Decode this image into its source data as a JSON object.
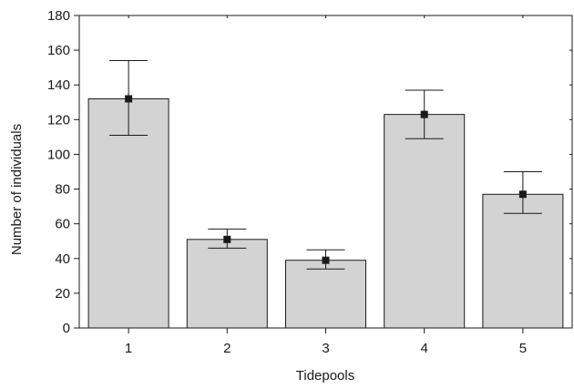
{
  "chart_data": {
    "type": "bar",
    "xlabel": "Tidepools",
    "ylabel": "Number of individuals",
    "ylim": [
      0,
      180
    ],
    "yticks": [
      0,
      20,
      40,
      60,
      80,
      100,
      120,
      140,
      160,
      180
    ],
    "categories": [
      "1",
      "2",
      "3",
      "4",
      "5"
    ],
    "values": [
      132,
      51,
      39,
      123,
      77
    ],
    "error_low": [
      111,
      46,
      34,
      109,
      66
    ],
    "error_high": [
      154,
      57,
      45,
      137,
      90
    ],
    "grid": false,
    "legend": "none",
    "colors": {
      "bar_fill": "#d3d3d3",
      "bar_stroke": "#1a1a1a",
      "marker": "#1a1a1a"
    }
  }
}
